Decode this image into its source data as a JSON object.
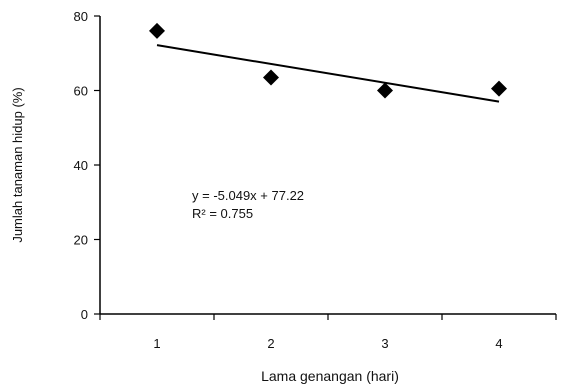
{
  "chart_data": {
    "type": "scatter",
    "xlabel": "Lama genangan (hari)",
    "ylabel": "Jumlah tanaman hidup (%)",
    "xlim": [
      0.5,
      4.5
    ],
    "ylim": [
      0,
      80
    ],
    "x_ticks": [
      1,
      2,
      3,
      4
    ],
    "y_ticks": [
      0,
      20,
      40,
      60,
      80
    ],
    "grid": false,
    "legend": "none",
    "series": [
      {
        "x": [
          1,
          2,
          3,
          4
        ],
        "y": [
          76,
          63.5,
          60,
          60.5
        ],
        "marker": "diamond",
        "color": "#000000"
      }
    ],
    "trendline": {
      "slope": -5.049,
      "intercept": 77.22,
      "color": "#000000"
    },
    "annotations": [
      "y = -5.049x + 77.22",
      "R² = 0.755"
    ]
  }
}
